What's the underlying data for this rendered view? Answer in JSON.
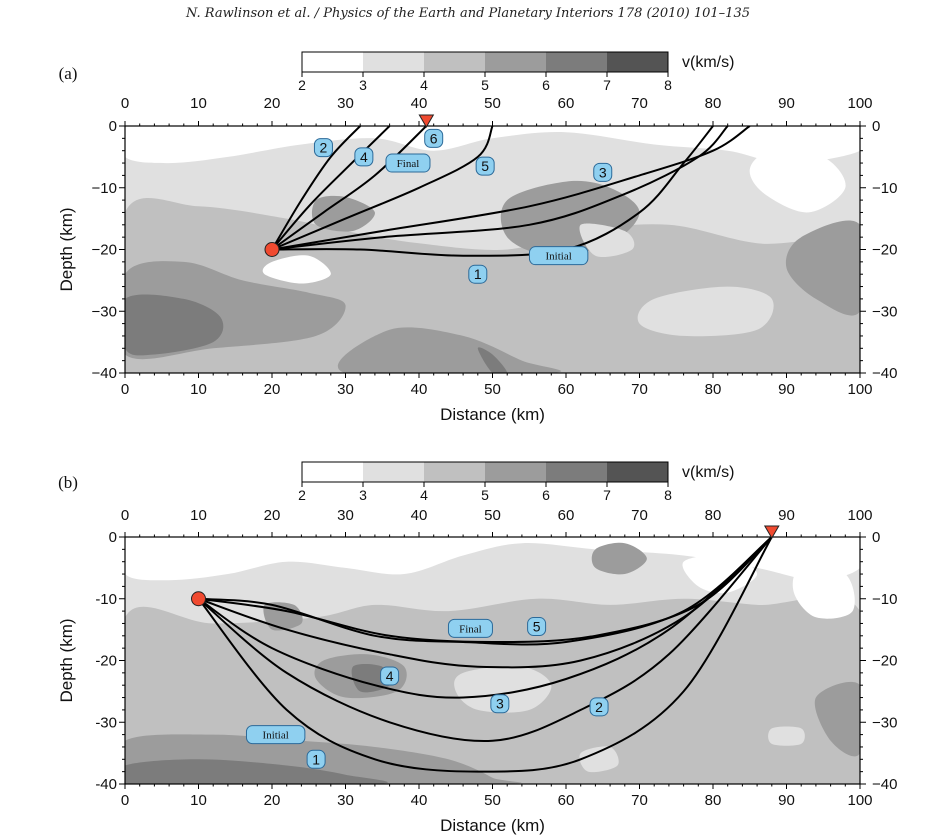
{
  "header": {
    "citation": "N. Rawlinson et al. / Physics of the Earth and Planetary Interiors 178 (2010) 101–135"
  },
  "colors": {
    "velocity_fills": [
      "#ffffff",
      "#e0e0e0",
      "#c0c0c0",
      "#9c9c9c",
      "#7c7c7c",
      "#545454"
    ],
    "ray_path": "#000000",
    "source": "#f04a30",
    "receiver": "#f04a30",
    "label_bg": "#8fd0f0",
    "label_border": "#2c6a99"
  },
  "chart_data": [
    {
      "type": "diagram",
      "panel_label": "(a)",
      "colorbar": {
        "label": "v(km/s)",
        "ticks": [
          "2",
          "3",
          "4",
          "5",
          "6",
          "7",
          "8"
        ]
      },
      "xlabel": "Distance (km)",
      "ylabel": "Depth (km)",
      "xlim": [
        0,
        100
      ],
      "ylim": [
        -40,
        0
      ],
      "x_ticks": [
        "0",
        "10",
        "20",
        "30",
        "40",
        "50",
        "60",
        "70",
        "80",
        "90",
        "100"
      ],
      "y_ticks_left": [
        "0",
        "−10",
        "−20",
        "−30",
        "−40"
      ],
      "y_ticks_right": [
        "0",
        "−10",
        "−20",
        "−30",
        "−40"
      ],
      "source": {
        "x": 20,
        "y": -20
      },
      "receiver": {
        "x": 41
      },
      "ray_labels": [
        {
          "text": "1",
          "x": 48,
          "y": -24
        },
        {
          "text": "2",
          "x": 27,
          "y": -3.5
        },
        {
          "text": "3",
          "x": 65,
          "y": -7.5
        },
        {
          "text": "4",
          "x": 32.5,
          "y": -5
        },
        {
          "text": "5",
          "x": 49,
          "y": -6.5
        },
        {
          "text": "6",
          "x": 42,
          "y": -2
        },
        {
          "text": "Final",
          "x": 38.5,
          "y": -6
        },
        {
          "text": "Initial",
          "x": 59,
          "y": -21
        }
      ]
    },
    {
      "type": "diagram",
      "panel_label": "(b)",
      "colorbar": {
        "label": "v(km/s)",
        "ticks": [
          "2",
          "3",
          "4",
          "5",
          "6",
          "7",
          "8"
        ]
      },
      "xlabel": "Distance (km)",
      "ylabel": "Depth (km)",
      "xlim": [
        0,
        100
      ],
      "ylim": [
        -40,
        0
      ],
      "x_ticks": [
        "0",
        "10",
        "20",
        "30",
        "40",
        "50",
        "60",
        "70",
        "80",
        "90",
        "100"
      ],
      "y_ticks_left": [
        "0",
        "-10",
        "-20",
        "-30",
        "-40"
      ],
      "y_ticks_right": [
        "0",
        "−10",
        "−20",
        "−30",
        "−40"
      ],
      "source": {
        "x": 10,
        "y": -10
      },
      "receiver": {
        "x": 88
      },
      "ray_labels": [
        {
          "text": "1",
          "x": 26,
          "y": -36
        },
        {
          "text": "2",
          "x": 64.5,
          "y": -27.5
        },
        {
          "text": "3",
          "x": 51,
          "y": -27
        },
        {
          "text": "4",
          "x": 36,
          "y": -22.5
        },
        {
          "text": "5",
          "x": 56,
          "y": -14.5
        },
        {
          "text": "Final",
          "x": 47,
          "y": -14.8
        },
        {
          "text": "Initial",
          "x": 20.5,
          "y": -32
        }
      ]
    }
  ]
}
